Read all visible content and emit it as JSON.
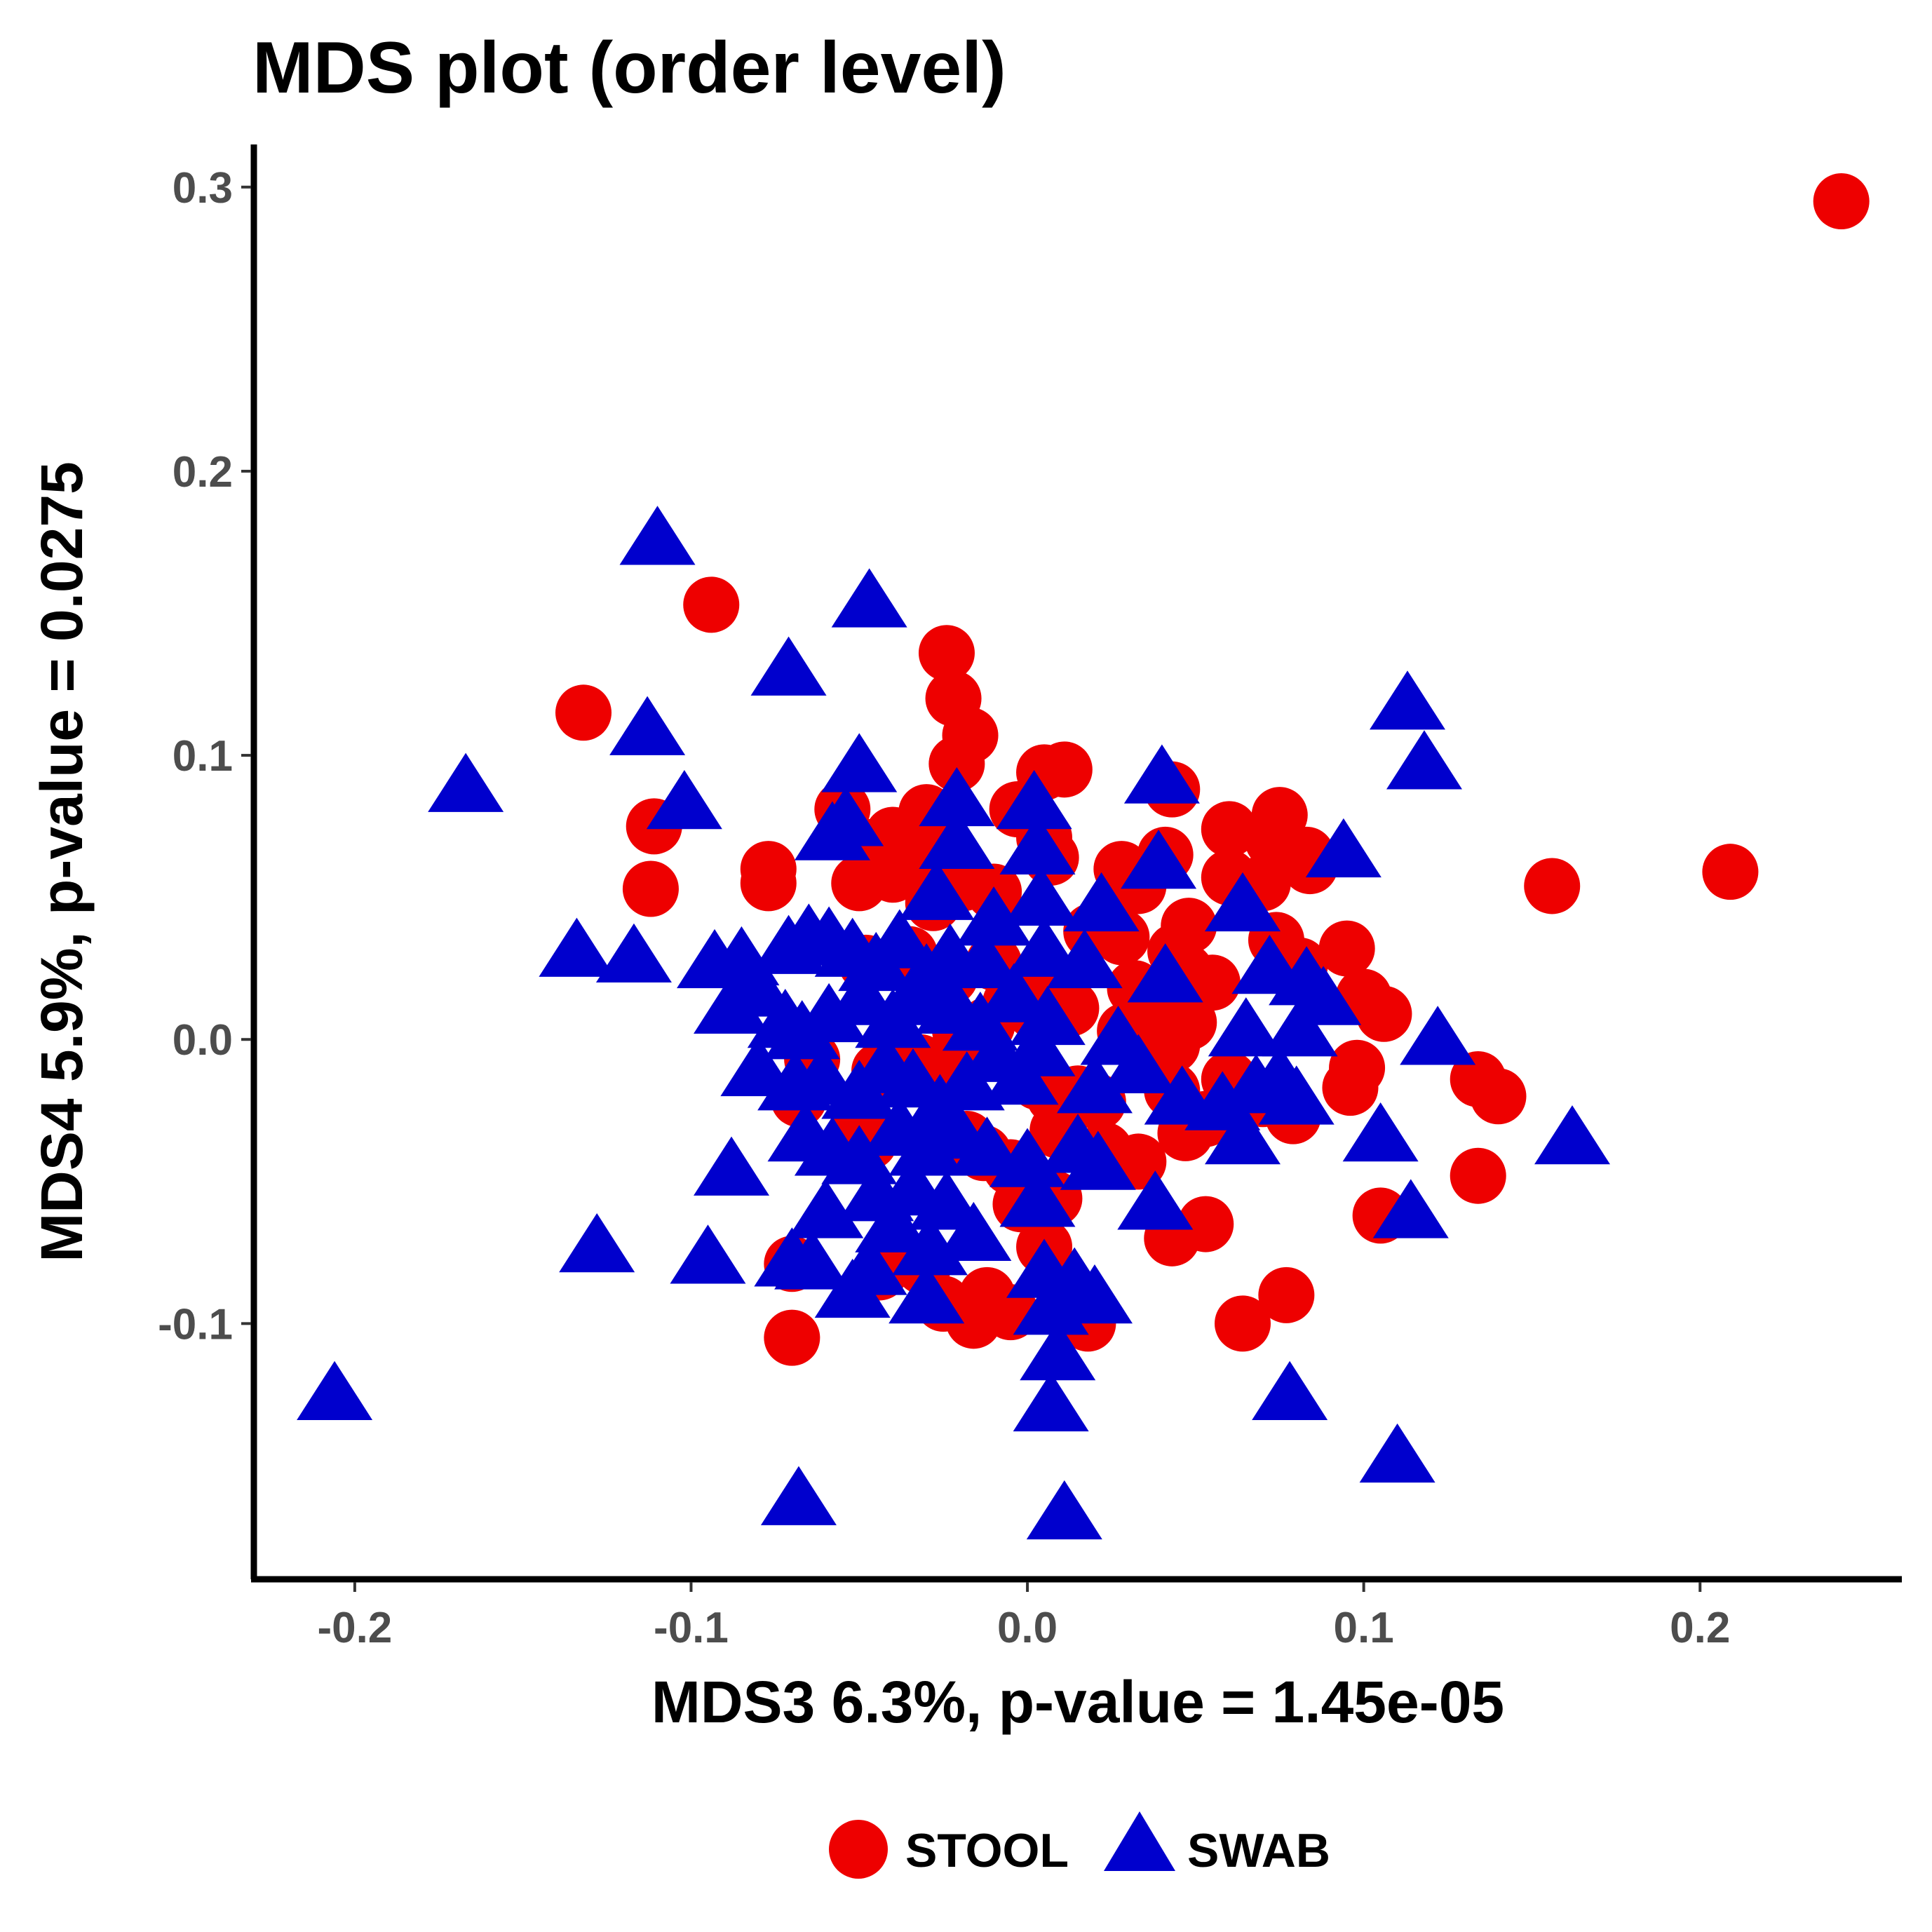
{
  "chart_data": {
    "type": "scatter",
    "title": "MDS plot (order level)",
    "xlabel": "MDS3 6.3%, p-value = 1.45e-05",
    "ylabel": "MDS4 5.9%, p-value = 0.0275",
    "xlim": [
      -0.23,
      0.26
    ],
    "ylim": [
      -0.19,
      0.315
    ],
    "x_ticks": [
      -0.2,
      -0.1,
      0.0,
      0.1,
      0.2
    ],
    "x_tick_labels": [
      "-0.2",
      "-0.1",
      "0.0",
      "0.1",
      "0.2"
    ],
    "y_ticks": [
      -0.1,
      0.0,
      0.1,
      0.2,
      0.3
    ],
    "y_tick_labels": [
      "-0.1",
      "0.0",
      "0.1",
      "0.2",
      "0.3"
    ],
    "grid": false,
    "legend_position": "bottom",
    "series": [
      {
        "name": "STOOL",
        "color": "#ee0000",
        "marker": "circle",
        "points": [
          [
            0.242,
            0.295
          ],
          [
            0.209,
            0.059
          ],
          [
            0.156,
            0.054
          ],
          [
            -0.094,
            0.153
          ],
          [
            -0.132,
            0.115
          ],
          [
            -0.024,
            0.136
          ],
          [
            -0.022,
            0.12
          ],
          [
            -0.017,
            0.107
          ],
          [
            -0.021,
            0.097
          ],
          [
            0.011,
            0.095
          ],
          [
            0.005,
            0.094
          ],
          [
            -0.111,
            0.075
          ],
          [
            -0.112,
            0.053
          ],
          [
            -0.077,
            0.06
          ],
          [
            -0.077,
            0.055
          ],
          [
            -0.055,
            0.081
          ],
          [
            -0.045,
            0.068
          ],
          [
            -0.05,
            0.055
          ],
          [
            -0.04,
            0.072
          ],
          [
            -0.03,
            0.08
          ],
          [
            -0.033,
            0.066
          ],
          [
            -0.04,
            0.058
          ],
          [
            -0.028,
            0.048
          ],
          [
            -0.019,
            0.055
          ],
          [
            -0.01,
            0.052
          ],
          [
            -0.003,
            0.081
          ],
          [
            0.005,
            0.071
          ],
          [
            0.007,
            0.064
          ],
          [
            0.028,
            0.06
          ],
          [
            0.033,
            0.054
          ],
          [
            0.043,
            0.088
          ],
          [
            0.041,
            0.065
          ],
          [
            0.06,
            0.074
          ],
          [
            0.06,
            0.057
          ],
          [
            0.07,
            0.055
          ],
          [
            0.075,
            0.079
          ],
          [
            0.073,
            0.07
          ],
          [
            0.083,
            0.065
          ],
          [
            0.084,
            0.061
          ],
          [
            0.095,
            0.032
          ],
          [
            0.081,
            0.026
          ],
          [
            0.074,
            0.035
          ],
          [
            0.048,
            0.04
          ],
          [
            0.044,
            0.031
          ],
          [
            0.047,
            0.024
          ],
          [
            0.055,
            0.02
          ],
          [
            0.028,
            0.036
          ],
          [
            0.019,
            0.038
          ],
          [
            0.032,
            0.018
          ],
          [
            0.041,
            0.01
          ],
          [
            0.048,
            0.006
          ],
          [
            0.043,
            -0.002
          ],
          [
            0.029,
            0.003
          ],
          [
            0.013,
            0.011
          ],
          [
            0.005,
            0.018
          ],
          [
            -0.005,
            0.013
          ],
          [
            -0.012,
            0.005
          ],
          [
            -0.02,
            0.003
          ],
          [
            -0.023,
            0.022
          ],
          [
            -0.022,
            -0.006
          ],
          [
            -0.032,
            -0.008
          ],
          [
            0.003,
            -0.015
          ],
          [
            0.008,
            -0.02
          ],
          [
            0.015,
            -0.019
          ],
          [
            0.021,
            -0.022
          ],
          [
            0.043,
            -0.018
          ],
          [
            0.047,
            -0.033
          ],
          [
            0.053,
            -0.028
          ],
          [
            0.079,
            -0.027
          ],
          [
            0.07,
            -0.021
          ],
          [
            0.06,
            -0.014
          ],
          [
            0.1,
            0.015
          ],
          [
            0.106,
            0.009
          ],
          [
            0.098,
            -0.01
          ],
          [
            0.096,
            -0.017
          ],
          [
            0.134,
            -0.014
          ],
          [
            0.14,
            -0.02
          ],
          [
            0.134,
            -0.048
          ],
          [
            0.105,
            -0.062
          ],
          [
            0.077,
            -0.09
          ],
          [
            0.064,
            -0.1
          ],
          [
            0.053,
            -0.065
          ],
          [
            0.043,
            -0.07
          ],
          [
            0.033,
            -0.043
          ],
          [
            0.023,
            -0.039
          ],
          [
            0.018,
            -0.1
          ],
          [
            0.005,
            -0.073
          ],
          [
            0.008,
            -0.056
          ],
          [
            -0.002,
            -0.058
          ],
          [
            -0.005,
            -0.045
          ],
          [
            -0.013,
            -0.04
          ],
          [
            -0.018,
            -0.035
          ],
          [
            -0.012,
            -0.09
          ],
          [
            -0.016,
            -0.099
          ],
          [
            -0.005,
            -0.096
          ],
          [
            -0.025,
            -0.093
          ],
          [
            -0.031,
            -0.08
          ],
          [
            -0.044,
            -0.082
          ],
          [
            -0.047,
            -0.036
          ],
          [
            -0.05,
            -0.027
          ],
          [
            -0.044,
            -0.011
          ],
          [
            -0.064,
            -0.007
          ],
          [
            -0.068,
            -0.021
          ],
          [
            -0.07,
            -0.079
          ],
          [
            -0.07,
            -0.105
          ],
          [
            -0.048,
            0.027
          ],
          [
            -0.035,
            0.03
          ],
          [
            -0.01,
            0.027
          ],
          [
            0.002,
            0.01
          ],
          [
            0.009,
            -0.032
          ]
        ]
      },
      {
        "name": "SWAB",
        "color": "#0000cd",
        "marker": "triangle",
        "points": [
          [
            -0.11,
            0.175
          ],
          [
            -0.047,
            0.153
          ],
          [
            -0.071,
            0.129
          ],
          [
            -0.113,
            0.108
          ],
          [
            -0.102,
            0.082
          ],
          [
            -0.167,
            0.088
          ],
          [
            -0.05,
            0.095
          ],
          [
            -0.054,
            0.076
          ],
          [
            -0.058,
            0.071
          ],
          [
            -0.021,
            0.083
          ],
          [
            -0.021,
            0.068
          ],
          [
            0.002,
            0.082
          ],
          [
            0.003,
            0.066
          ],
          [
            0.04,
            0.091
          ],
          [
            0.039,
            0.061
          ],
          [
            0.113,
            0.117
          ],
          [
            0.118,
            0.096
          ],
          [
            0.094,
            0.065
          ],
          [
            0.022,
            0.046
          ],
          [
            0.064,
            0.046
          ],
          [
            -0.027,
            0.05
          ],
          [
            -0.01,
            0.041
          ],
          [
            0.004,
            0.048
          ],
          [
            -0.134,
            0.03
          ],
          [
            -0.117,
            0.028
          ],
          [
            -0.093,
            0.026
          ],
          [
            -0.085,
            0.027
          ],
          [
            -0.071,
            0.031
          ],
          [
            -0.065,
            0.035
          ],
          [
            -0.059,
            0.034
          ],
          [
            -0.052,
            0.03
          ],
          [
            -0.045,
            0.025
          ],
          [
            -0.038,
            0.033
          ],
          [
            -0.03,
            0.021
          ],
          [
            -0.023,
            0.028
          ],
          [
            -0.013,
            0.026
          ],
          [
            0.005,
            0.03
          ],
          [
            0.017,
            0.026
          ],
          [
            0.041,
            0.021
          ],
          [
            0.072,
            0.024
          ],
          [
            0.083,
            0.02
          ],
          [
            0.088,
            0.013
          ],
          [
            -0.088,
            0.01
          ],
          [
            -0.08,
            0.016
          ],
          [
            -0.072,
            0.005
          ],
          [
            -0.067,
            0.001
          ],
          [
            -0.059,
            0.007
          ],
          [
            -0.049,
            0.013
          ],
          [
            -0.04,
            0.005
          ],
          [
            -0.033,
            0.013
          ],
          [
            -0.022,
            0.01
          ],
          [
            -0.014,
            0.004
          ],
          [
            -0.004,
            0.014
          ],
          [
            0.006,
            0.006
          ],
          [
            0.027,
            -0.001
          ],
          [
            0.065,
            0.002
          ],
          [
            0.081,
            0.002
          ],
          [
            0.122,
            -0.001
          ],
          [
            -0.08,
            -0.012
          ],
          [
            -0.069,
            -0.017
          ],
          [
            -0.061,
            -0.015
          ],
          [
            -0.05,
            -0.02
          ],
          [
            -0.042,
            -0.011
          ],
          [
            -0.034,
            -0.016
          ],
          [
            -0.026,
            -0.025
          ],
          [
            -0.018,
            -0.017
          ],
          [
            -0.009,
            -0.007
          ],
          [
            -0.002,
            -0.015
          ],
          [
            0.003,
            -0.005
          ],
          [
            0.02,
            -0.018
          ],
          [
            0.033,
            -0.011
          ],
          [
            0.046,
            -0.022
          ],
          [
            0.058,
            -0.024
          ],
          [
            0.068,
            -0.018
          ],
          [
            0.075,
            -0.015
          ],
          [
            0.08,
            -0.022
          ],
          [
            -0.066,
            -0.035
          ],
          [
            -0.058,
            -0.04
          ],
          [
            -0.05,
            -0.043
          ],
          [
            -0.038,
            -0.033
          ],
          [
            -0.03,
            -0.04
          ],
          [
            -0.021,
            -0.034
          ],
          [
            -0.012,
            -0.04
          ],
          [
            0.0,
            -0.044
          ],
          [
            0.015,
            -0.039
          ],
          [
            0.021,
            -0.045
          ],
          [
            0.064,
            -0.036
          ],
          [
            0.105,
            -0.035
          ],
          [
            0.162,
            -0.036
          ],
          [
            -0.088,
            -0.047
          ],
          [
            -0.045,
            -0.056
          ],
          [
            -0.034,
            -0.054
          ],
          [
            -0.024,
            -0.059
          ],
          [
            -0.06,
            -0.062
          ],
          [
            -0.04,
            -0.067
          ],
          [
            -0.016,
            -0.07
          ],
          [
            0.003,
            -0.058
          ],
          [
            0.038,
            -0.059
          ],
          [
            0.114,
            -0.062
          ],
          [
            -0.128,
            -0.074
          ],
          [
            -0.095,
            -0.078
          ],
          [
            -0.07,
            -0.079
          ],
          [
            -0.047,
            -0.082
          ],
          [
            -0.029,
            -0.075
          ],
          [
            -0.064,
            -0.08
          ],
          [
            -0.052,
            -0.09
          ],
          [
            -0.03,
            -0.092
          ],
          [
            0.005,
            -0.083
          ],
          [
            0.014,
            -0.086
          ],
          [
            0.007,
            -0.096
          ],
          [
            0.02,
            -0.092
          ],
          [
            -0.206,
            -0.126
          ],
          [
            0.009,
            -0.112
          ],
          [
            0.078,
            -0.126
          ],
          [
            0.007,
            -0.13
          ],
          [
            0.11,
            -0.148
          ],
          [
            -0.068,
            -0.163
          ],
          [
            0.011,
            -0.168
          ]
        ]
      }
    ]
  }
}
